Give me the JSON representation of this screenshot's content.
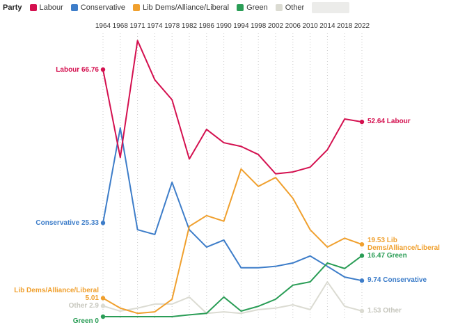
{
  "legend": {
    "title": "Party",
    "items": [
      {
        "label": "Labour",
        "color": "#d4104f"
      },
      {
        "label": "Conservative",
        "color": "#3d7dc9"
      },
      {
        "label": "Lib Dems/Alliance/Liberal",
        "color": "#f0a02e"
      },
      {
        "label": "Green",
        "color": "#2a9d56"
      },
      {
        "label": "Other",
        "color": "#dbdbd2"
      }
    ]
  },
  "chart_data": {
    "type": "line",
    "x": [
      1964,
      1968,
      1971,
      1974,
      1978,
      1982,
      1986,
      1990,
      1994,
      1998,
      2002,
      2006,
      2010,
      2014,
      2018,
      2022
    ],
    "x_axis_position": "top",
    "grid": "vertical-dotted",
    "ylim": [
      0,
      78
    ],
    "series": [
      {
        "id": "labour",
        "name": "Labour",
        "color": "#d4104f",
        "values": [
          66.76,
          43.0,
          74.6,
          64.0,
          58.6,
          42.6,
          50.6,
          47.0,
          46.0,
          43.8,
          38.6,
          39.1,
          40.4,
          45.1,
          53.4,
          52.64
        ],
        "start_label_lines": [
          "Labour 66.76"
        ],
        "end_label_lines": [
          "52.64 Labour"
        ]
      },
      {
        "id": "conservative",
        "name": "Conservative",
        "color": "#3d7dc9",
        "values": [
          25.33,
          51.0,
          23.5,
          22.2,
          36.3,
          23.5,
          18.8,
          20.7,
          13.2,
          13.2,
          13.6,
          14.5,
          16.4,
          13.6,
          10.7,
          9.74
        ],
        "start_label_lines": [
          "Conservative 25.33"
        ],
        "end_label_lines": [
          "9.74 Conservative"
        ]
      },
      {
        "id": "libdem",
        "name": "Lib Dems/Alliance/Liberal",
        "color": "#f0a02e",
        "values": [
          5.01,
          2.3,
          0.9,
          1.3,
          4.7,
          24.4,
          27.3,
          25.8,
          39.9,
          35.2,
          37.6,
          32.0,
          23.5,
          18.8,
          21.2,
          19.53
        ],
        "start_label_lines": [
          "Lib Dems/Alliance/Liberal",
          "5.01"
        ],
        "end_label_lines": [
          "19.53 Lib",
          "Dems/Alliance/Liberal"
        ]
      },
      {
        "id": "green",
        "name": "Green",
        "color": "#2a9d56",
        "values": [
          0,
          0,
          0,
          0,
          0,
          0.5,
          0.9,
          5.3,
          1.5,
          2.8,
          4.7,
          8.5,
          9.4,
          14.5,
          13.0,
          16.47
        ],
        "start_label_lines": [
          "Green 0"
        ],
        "end_label_lines": [
          "16.47 Green"
        ]
      },
      {
        "id": "other",
        "name": "Other",
        "color": "#dbdbd2",
        "label_color": "#c7c7be",
        "values": [
          2.9,
          1.5,
          2.3,
          3.4,
          3.4,
          5.3,
          0.9,
          1.3,
          0.9,
          1.9,
          2.3,
          3.2,
          1.9,
          9.4,
          2.8,
          1.53
        ],
        "start_label_lines": [
          "Other 2.9"
        ],
        "end_label_lines": [
          "1.53 Other"
        ]
      }
    ]
  }
}
